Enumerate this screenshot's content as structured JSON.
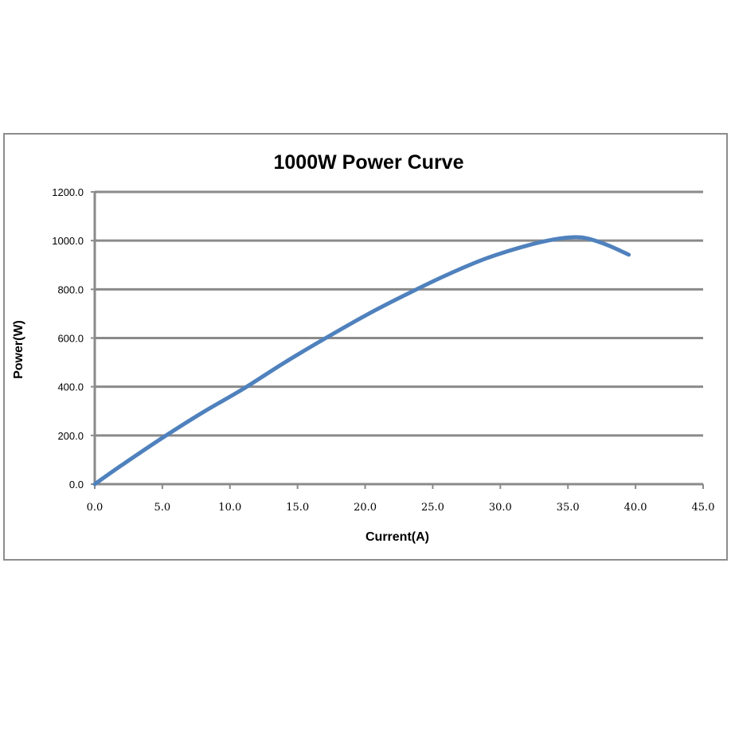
{
  "chart_data": {
    "type": "line",
    "title": "1000W Power Curve",
    "xlabel": "Current(A)",
    "ylabel": "Power(W)",
    "xlim": [
      0,
      45
    ],
    "ylim": [
      0,
      1200
    ],
    "x_ticks": [
      "0.0",
      "5.0",
      "10.0",
      "15.0",
      "20.0",
      "25.0",
      "30.0",
      "35.0",
      "40.0",
      "45.0"
    ],
    "y_ticks": [
      "0.0",
      "200.0",
      "400.0",
      "600.0",
      "800.0",
      "1000.0",
      "1200.0"
    ],
    "x_tick_values": [
      0,
      5,
      10,
      15,
      20,
      25,
      30,
      35,
      40,
      45
    ],
    "y_tick_values": [
      0,
      200,
      400,
      600,
      800,
      1000,
      1200
    ],
    "grid": true,
    "legend": "none",
    "series": [
      {
        "color": "#4f81bd",
        "x": [
          0,
          2,
          5,
          8,
          11,
          14,
          17,
          20,
          23,
          26,
          29,
          32,
          34,
          35.5,
          36.5,
          38,
          39.5
        ],
        "y": [
          0,
          78,
          190,
          295,
          392,
          498,
          597,
          692,
          778,
          858,
          928,
          980,
          1005,
          1014,
          1008,
          980,
          942
        ]
      }
    ]
  }
}
